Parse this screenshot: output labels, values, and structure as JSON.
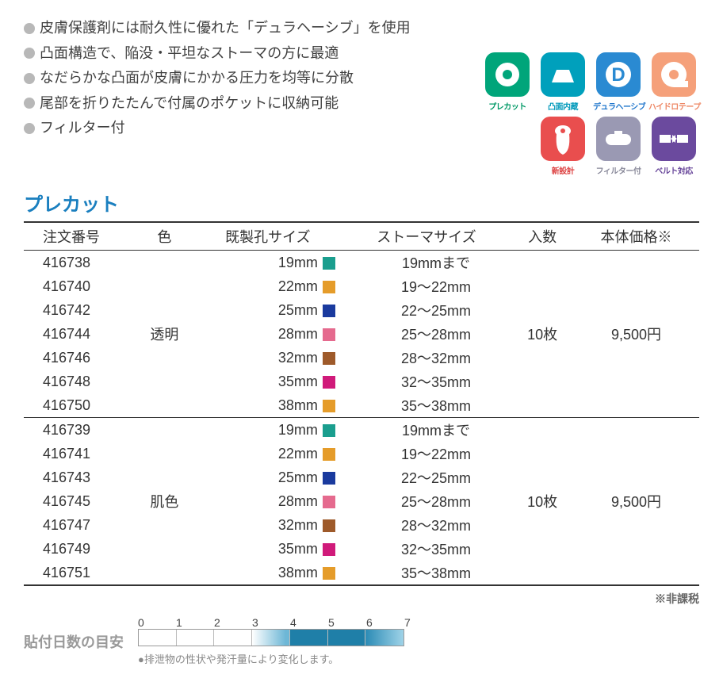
{
  "bullets": [
    "皮膚保護剤には耐久性に優れた「デュラヘーシブ」を使用",
    "凸面構造で、陥没・平坦なストーマの方に最適",
    "なだらかな凸面が皮膚にかかる圧力を均等に分散",
    "尾部を折りたたんで付属のポケットに収納可能",
    "フィルター付"
  ],
  "feature_icons": {
    "row1": [
      {
        "label": "プレカット",
        "bg": "#00a57a",
        "label_color": "#009966",
        "glyph": "donut"
      },
      {
        "label": "凸面内蔵",
        "bg": "#00a0bc",
        "label_color": "#0099bb",
        "glyph": "trapezoid"
      },
      {
        "label": "デュラヘーシブ",
        "bg": "#2a8ad2",
        "label_color": "#2277cc",
        "glyph": "D"
      },
      {
        "label": "ハイドロテープ",
        "bg": "#f5a07a",
        "label_color": "#ee8866",
        "glyph": "tape"
      }
    ],
    "row2": [
      {
        "label": "新設計",
        "bg": "#e94e4e",
        "label_color": "#dd4444",
        "glyph": "bag"
      },
      {
        "label": "フィルター付",
        "bg": "#9a99b3",
        "label_color": "#888899",
        "glyph": "filter"
      },
      {
        "label": "ベルト対応",
        "bg": "#6b4a9e",
        "label_color": "#664499",
        "glyph": "belt"
      }
    ]
  },
  "section_title": "プレカット",
  "section_title_color": "#1a7fbf",
  "table": {
    "headers": [
      "注文番号",
      "色",
      "既製孔サイズ",
      "ストーマサイズ",
      "入数",
      "本体価格※"
    ],
    "groups": [
      {
        "color": "透明",
        "qty": "10枚",
        "price": "9,500円",
        "rows": [
          {
            "no": "416738",
            "hole": "19mm",
            "swatch": "#1a9e8e",
            "stoma": "19mmまで"
          },
          {
            "no": "416740",
            "hole": "22mm",
            "swatch": "#e59c2a",
            "stoma": "19～22mm"
          },
          {
            "no": "416742",
            "hole": "25mm",
            "swatch": "#1a3a9e",
            "stoma": "22～25mm"
          },
          {
            "no": "416744",
            "hole": "28mm",
            "swatch": "#e56a8e",
            "stoma": "25～28mm"
          },
          {
            "no": "416746",
            "hole": "32mm",
            "swatch": "#9e5a2a",
            "stoma": "28～32mm"
          },
          {
            "no": "416748",
            "hole": "35mm",
            "swatch": "#d01a7a",
            "stoma": "32～35mm"
          },
          {
            "no": "416750",
            "hole": "38mm",
            "swatch": "#e59c2a",
            "stoma": "35～38mm"
          }
        ]
      },
      {
        "color": "肌色",
        "qty": "10枚",
        "price": "9,500円",
        "rows": [
          {
            "no": "416739",
            "hole": "19mm",
            "swatch": "#1a9e8e",
            "stoma": "19mmまで"
          },
          {
            "no": "416741",
            "hole": "22mm",
            "swatch": "#e59c2a",
            "stoma": "19～22mm"
          },
          {
            "no": "416743",
            "hole": "25mm",
            "swatch": "#1a3a9e",
            "stoma": "22～25mm"
          },
          {
            "no": "416745",
            "hole": "28mm",
            "swatch": "#e56a8e",
            "stoma": "25～28mm"
          },
          {
            "no": "416747",
            "hole": "32mm",
            "swatch": "#9e5a2a",
            "stoma": "28～32mm"
          },
          {
            "no": "416749",
            "hole": "35mm",
            "swatch": "#d01a7a",
            "stoma": "32～35mm"
          },
          {
            "no": "416751",
            "hole": "38mm",
            "swatch": "#e59c2a",
            "stoma": "35～38mm"
          }
        ]
      }
    ]
  },
  "footnote": "※非課税",
  "days": {
    "label": "貼付日数の目安",
    "ticks": [
      "0",
      "1",
      "2",
      "3",
      "4",
      "5",
      "6",
      "7"
    ],
    "segments": [
      {
        "fill": "#ffffff"
      },
      {
        "fill": "#ffffff"
      },
      {
        "fill": "#ffffff"
      },
      {
        "fill": "linear-gradient(to right,#ffffff 0%,#6db7d6 90%)"
      },
      {
        "fill": "#1f7fa8"
      },
      {
        "fill": "#1f7fa8"
      },
      {
        "fill": "linear-gradient(to right,#2b8bb5 0%,#9fd3e8 100%)"
      }
    ],
    "note": "●排泄物の性状や発汗量により変化します。"
  }
}
